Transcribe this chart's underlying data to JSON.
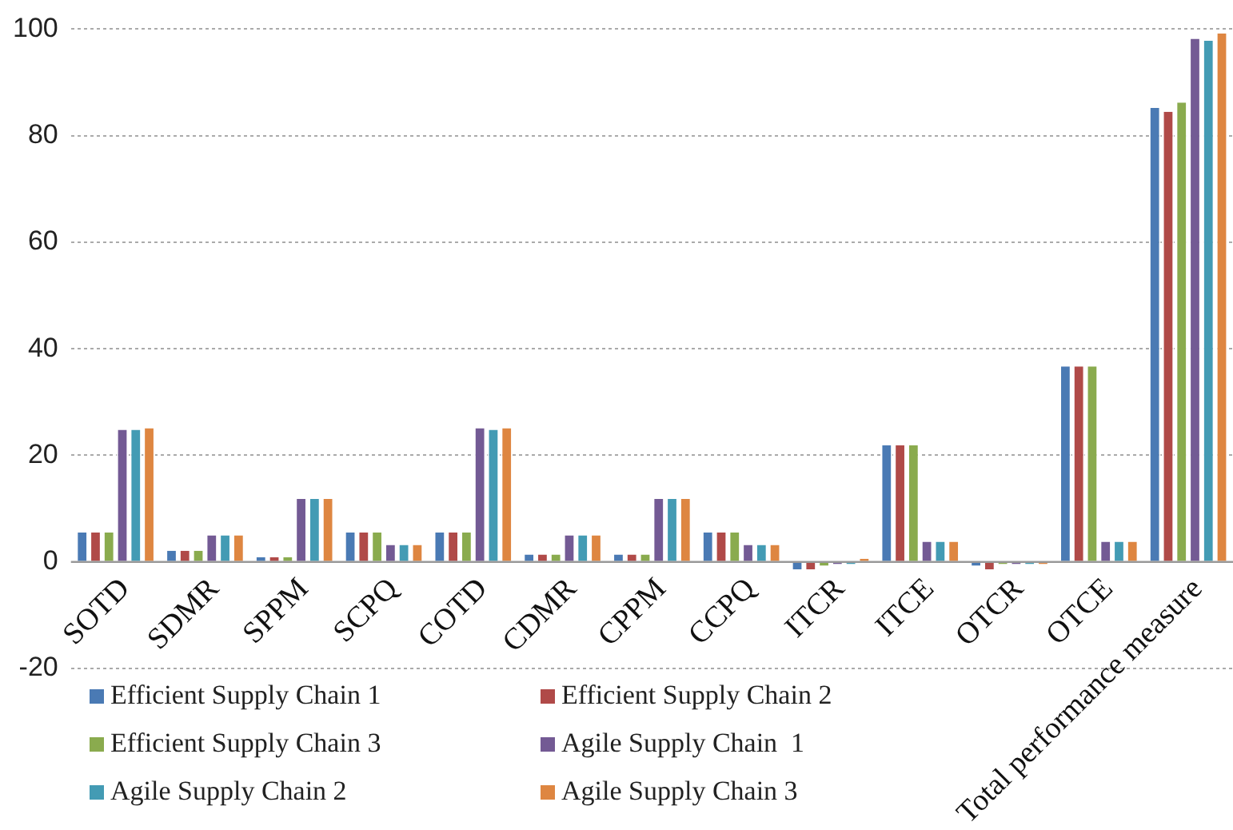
{
  "chart_data": {
    "type": "bar",
    "categories": [
      "SOTD",
      "SDMR",
      "SPPM",
      "SCPQ",
      "COTD",
      "CDMR",
      "CPPM",
      "CCPQ",
      "ITCR",
      "ITCE",
      "OTCR",
      "OTCE",
      "Total performance measure"
    ],
    "series": [
      {
        "name": "Efficient Supply Chain 1",
        "color": "#4a7ab4",
        "values": [
          5.5,
          2.1,
          0.9,
          5.5,
          5.5,
          1.4,
          1.4,
          5.5,
          -1.4,
          21.9,
          -0.7,
          36.7,
          85.2
        ]
      },
      {
        "name": "Efficient Supply Chain 2",
        "color": "#b04a48",
        "values": [
          5.5,
          2.1,
          0.9,
          5.5,
          5.5,
          1.4,
          1.4,
          5.5,
          -1.4,
          21.9,
          -1.4,
          36.7,
          84.5
        ]
      },
      {
        "name": "Efficient Supply Chain 3",
        "color": "#8aab4e",
        "values": [
          5.5,
          2.1,
          0.9,
          5.5,
          5.5,
          1.4,
          1.4,
          5.5,
          -0.7,
          21.9,
          -0.4,
          36.7,
          86.2
        ]
      },
      {
        "name": "Agile Supply Chain  1",
        "color": "#735a94",
        "values": [
          24.8,
          5.0,
          11.8,
          3.2,
          25.1,
          5.0,
          11.8,
          3.2,
          -0.4,
          3.8,
          -0.4,
          3.8,
          98.2
        ]
      },
      {
        "name": "Agile Supply Chain 2",
        "color": "#439bb4",
        "values": [
          24.8,
          5.0,
          11.8,
          3.2,
          24.8,
          5.0,
          11.8,
          3.2,
          -0.4,
          3.8,
          -0.4,
          3.8,
          97.8
        ]
      },
      {
        "name": "Agile Supply Chain 3",
        "color": "#de8641",
        "values": [
          25.1,
          5.0,
          11.8,
          3.2,
          25.1,
          5.0,
          11.8,
          3.2,
          0.6,
          3.8,
          -0.4,
          3.8,
          99.2
        ]
      }
    ],
    "ylim": [
      -20,
      100
    ],
    "yticks": [
      -20,
      0,
      20,
      40,
      60,
      80,
      100
    ],
    "grid": "y",
    "legend": "bottom"
  }
}
